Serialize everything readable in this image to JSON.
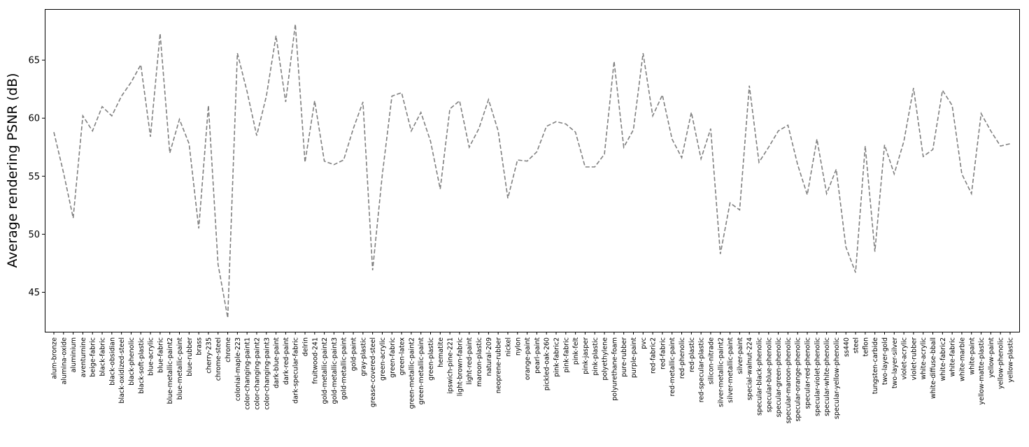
{
  "chart_data": {
    "type": "line",
    "title": "",
    "xlabel": "",
    "ylabel": "Average rendering PSNR (dB)",
    "ylim": [
      41.6,
      69.4
    ],
    "yticks": [
      45,
      50,
      55,
      60,
      65
    ],
    "grid": false,
    "line_style": "dashed",
    "line_color": "#808080",
    "categories": [
      "alum-bronze",
      "alumina-oxide",
      "aluminium",
      "aventurnine",
      "beige-fabric",
      "black-fabric",
      "black-obsidian",
      "black-oxidized-steel",
      "black-phenolic",
      "black-soft-plastic",
      "blue-acrylic",
      "blue-fabric",
      "blue-metallic-paint2",
      "blue-metallic-paint",
      "blue-rubber",
      "brass",
      "cherry-235",
      "chrome-steel",
      "chrome",
      "colonial-maple-223",
      "color-changing-paint1",
      "color-changing-paint2",
      "color-changing-paint3",
      "dark-blue-paint",
      "dark-red-paint",
      "dark-specular-fabric",
      "delrin",
      "fruitwood-241",
      "gold-metallic-paint2",
      "gold-metallic-paint3",
      "gold-metallic-paint",
      "gold-paint",
      "gray-plastic",
      "grease-covered-steel",
      "green-acrylic",
      "green-fabric",
      "green-latex",
      "green-metallic-paint2",
      "green-metallic-paint",
      "green-plastic",
      "hematite",
      "ipswich-pine-221",
      "light-brown-fabric",
      "light-red-paint",
      "maroon-plastic",
      "natural-209",
      "neoprene-rubber",
      "nickel",
      "nylon",
      "orange-paint",
      "pearl-paint",
      "pickled-oak-260",
      "pink-fabric2",
      "pink-fabric",
      "pink-felt",
      "pink-jasper",
      "pink-plastic",
      "polyethylene",
      "polyurethane-foam",
      "pure-rubber",
      "purple-paint",
      "pvc",
      "red-fabric2",
      "red-fabric",
      "red-metallic-paint",
      "red-phenolic",
      "red-plastic",
      "red-specular-plastic",
      "silicon-nitrade",
      "silver-metallic-paint2",
      "silver-metallic-paint",
      "silver-paint",
      "special-walnut-224",
      "specular-black-phenolic",
      "specular-blue-phenolic",
      "specular-green-phenolic",
      "specular-maroon-phenolic",
      "specular-orange-phenolic",
      "specular-red-phenolic",
      "specular-violet-phenolic",
      "specular-white-phenolic",
      "specular-yellow-phenolic",
      "ss440",
      "steel",
      "teflon",
      "tungsten-carbide",
      "two-layer-gold",
      "two-layer-silver",
      "violet-acrylic",
      "violet-rubber",
      "white-acrylic",
      "white-diffuse-bball",
      "white-fabric2",
      "white-fabric",
      "white-marble",
      "white-paint",
      "yellow-matte-plastic",
      "yellow-paint",
      "yellow-phenolic",
      "yellow-plastic"
    ],
    "values": [
      58.8,
      55.3,
      51.4,
      60.2,
      58.9,
      61.0,
      60.2,
      61.9,
      63.1,
      64.6,
      58.4,
      67.3,
      57.0,
      59.9,
      57.8,
      50.5,
      61.1,
      47.4,
      42.8,
      65.6,
      62.3,
      58.5,
      61.9,
      67.1,
      61.4,
      68.1,
      56.2,
      61.5,
      56.3,
      56.0,
      56.4,
      59.1,
      61.4,
      46.9,
      55.1,
      61.9,
      62.2,
      58.9,
      60.5,
      58.0,
      53.9,
      60.8,
      61.5,
      57.5,
      59.1,
      61.6,
      58.9,
      53.1,
      56.4,
      56.3,
      57.1,
      59.3,
      59.7,
      59.5,
      58.8,
      55.8,
      55.8,
      56.9,
      64.9,
      57.5,
      59.0,
      65.6,
      60.2,
      62.0,
      58.2,
      56.6,
      60.5,
      56.5,
      59.1,
      48.3,
      52.7,
      52.1,
      62.8,
      56.2,
      57.5,
      58.9,
      59.4,
      56.0,
      53.4,
      58.2,
      53.5,
      55.6,
      48.9,
      46.7,
      57.6,
      48.5,
      57.7,
      55.2,
      58.0,
      62.6,
      56.7,
      57.3,
      62.4,
      61.1,
      55.2,
      53.5,
      60.4,
      58.9,
      57.6,
      57.8
    ]
  }
}
